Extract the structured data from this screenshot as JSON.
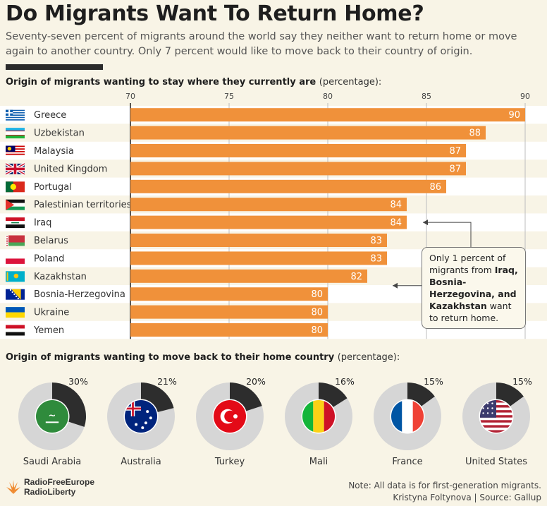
{
  "header": {
    "title": "Do Migrants Want To Return Home?",
    "subtitle": "Seventy-seven percent of migrants around the world say they neither want to return home or move again to another country. Only 7 percent would like to move back to their country of origin."
  },
  "chart_data": [
    {
      "type": "bar",
      "orientation": "horizontal",
      "title": "Origin of migrants wanting to stay where they currently are",
      "unit": "(percentage):",
      "categories": [
        "Greece",
        "Uzbekistan",
        "Malaysia",
        "United Kingdom",
        "Portugal",
        "Palestinian territories",
        "Iraq",
        "Belarus",
        "Poland",
        "Kazakhstan",
        "Bosnia-Herzegovina",
        "Ukraine",
        "Yemen"
      ],
      "values": [
        90,
        88,
        87,
        87,
        86,
        84,
        84,
        83,
        83,
        82,
        80,
        80,
        80
      ],
      "xlim": [
        70,
        90
      ],
      "ticks": [
        70,
        75,
        80,
        85,
        90
      ],
      "grid": true,
      "bar_color": "#f0913a"
    },
    {
      "type": "pie",
      "title": "Origin of migrants wanting to move back to their home country",
      "unit": "(percentage):",
      "categories": [
        "Saudi Arabia",
        "Australia",
        "Turkey",
        "Mali",
        "France",
        "United States"
      ],
      "values": [
        30,
        21,
        20,
        16,
        15,
        15
      ],
      "value_labels": [
        "30%",
        "21%",
        "20%",
        "16%",
        "15%",
        "15%"
      ],
      "slice_color": "#2d2d2d",
      "remainder_color": "#d6d6d6"
    }
  ],
  "flags": {
    "bar": [
      "greece-flag-icon",
      "uzbekistan-flag-icon",
      "malaysia-flag-icon",
      "united-kingdom-flag-icon",
      "portugal-flag-icon",
      "palestine-flag-icon",
      "iraq-flag-icon",
      "belarus-flag-icon",
      "poland-flag-icon",
      "kazakhstan-flag-icon",
      "bosnia-flag-icon",
      "ukraine-flag-icon",
      "yemen-flag-icon"
    ],
    "donut": [
      "saudi-arabia-flag-icon",
      "australia-flag-icon",
      "turkey-flag-icon",
      "mali-flag-icon",
      "france-flag-icon",
      "united-states-flag-icon"
    ]
  },
  "callout": {
    "line1": "Only 1 percent of migrants from",
    "bold": "Iraq, Bosnia-Herzegovina, and Kazakhstan",
    "line2": "want to return home."
  },
  "footer": {
    "brand_line1": "RadioFreeEurope",
    "brand_line2": "RadioLiberty",
    "note": "Note: All data is for first-generation migrants.",
    "credit": "Kristyna Foltynova | Source: Gallup"
  }
}
